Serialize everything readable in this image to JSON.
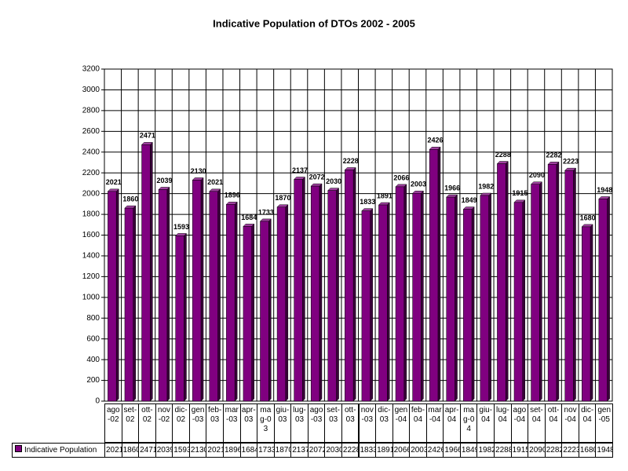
{
  "chart_data": {
    "type": "bar",
    "title": "Indicative Population of DTOs 2002 - 2005",
    "categories": [
      "ago-02",
      "set-02",
      "ott-02",
      "nov-02",
      "dic-02",
      "gen-03",
      "feb-03",
      "mar-03",
      "apr-03",
      "mag-03",
      "giu-03",
      "lug-03",
      "ago-03",
      "set-03",
      "ott-03",
      "nov-03",
      "dic-03",
      "gen-04",
      "feb-04",
      "mar-04",
      "apr-04",
      "mag-04",
      "giu-04",
      "lug-04",
      "ago-04",
      "set-04",
      "ott-04",
      "nov-04",
      "dic-04",
      "gen-05"
    ],
    "series": [
      {
        "name": "Indicative Population",
        "color": "#800080",
        "values": [
          2021,
          1860,
          2471,
          2039,
          1593,
          2130,
          2021,
          1896,
          1684,
          1733,
          1870,
          2137,
          2072,
          2030,
          2228,
          1833,
          1891,
          2066,
          2003,
          2426,
          1966,
          1849,
          1982,
          2288,
          1915,
          2090,
          2282,
          2223,
          1680,
          1948
        ]
      }
    ],
    "ylim": [
      0,
      3200
    ],
    "yticks": [
      0,
      200,
      400,
      600,
      800,
      1000,
      1200,
      1400,
      1600,
      1800,
      2000,
      2200,
      2400,
      2600,
      2800,
      3000,
      3200
    ],
    "grid": true
  }
}
